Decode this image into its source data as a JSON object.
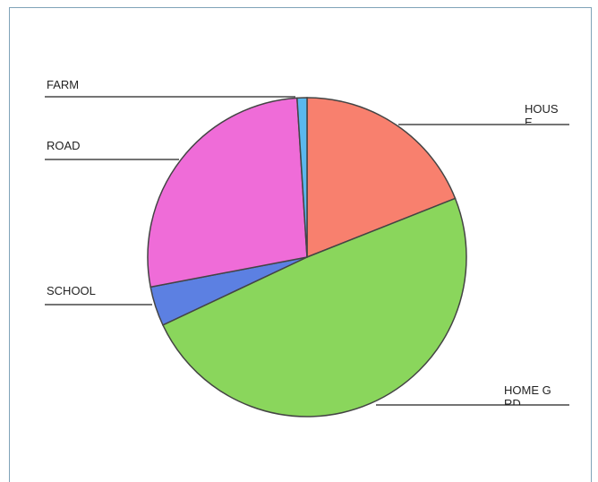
{
  "chart_data": {
    "type": "pie",
    "categories": [
      "HOUSE",
      "HOME GRD",
      "SCHOOL",
      "ROAD",
      "FARM"
    ],
    "values": [
      19,
      49,
      4,
      27,
      1
    ],
    "colors": [
      "#f8806e",
      "#8ad65c",
      "#5c80e2",
      "#ef6cd8",
      "#5ab8ee"
    ]
  }
}
